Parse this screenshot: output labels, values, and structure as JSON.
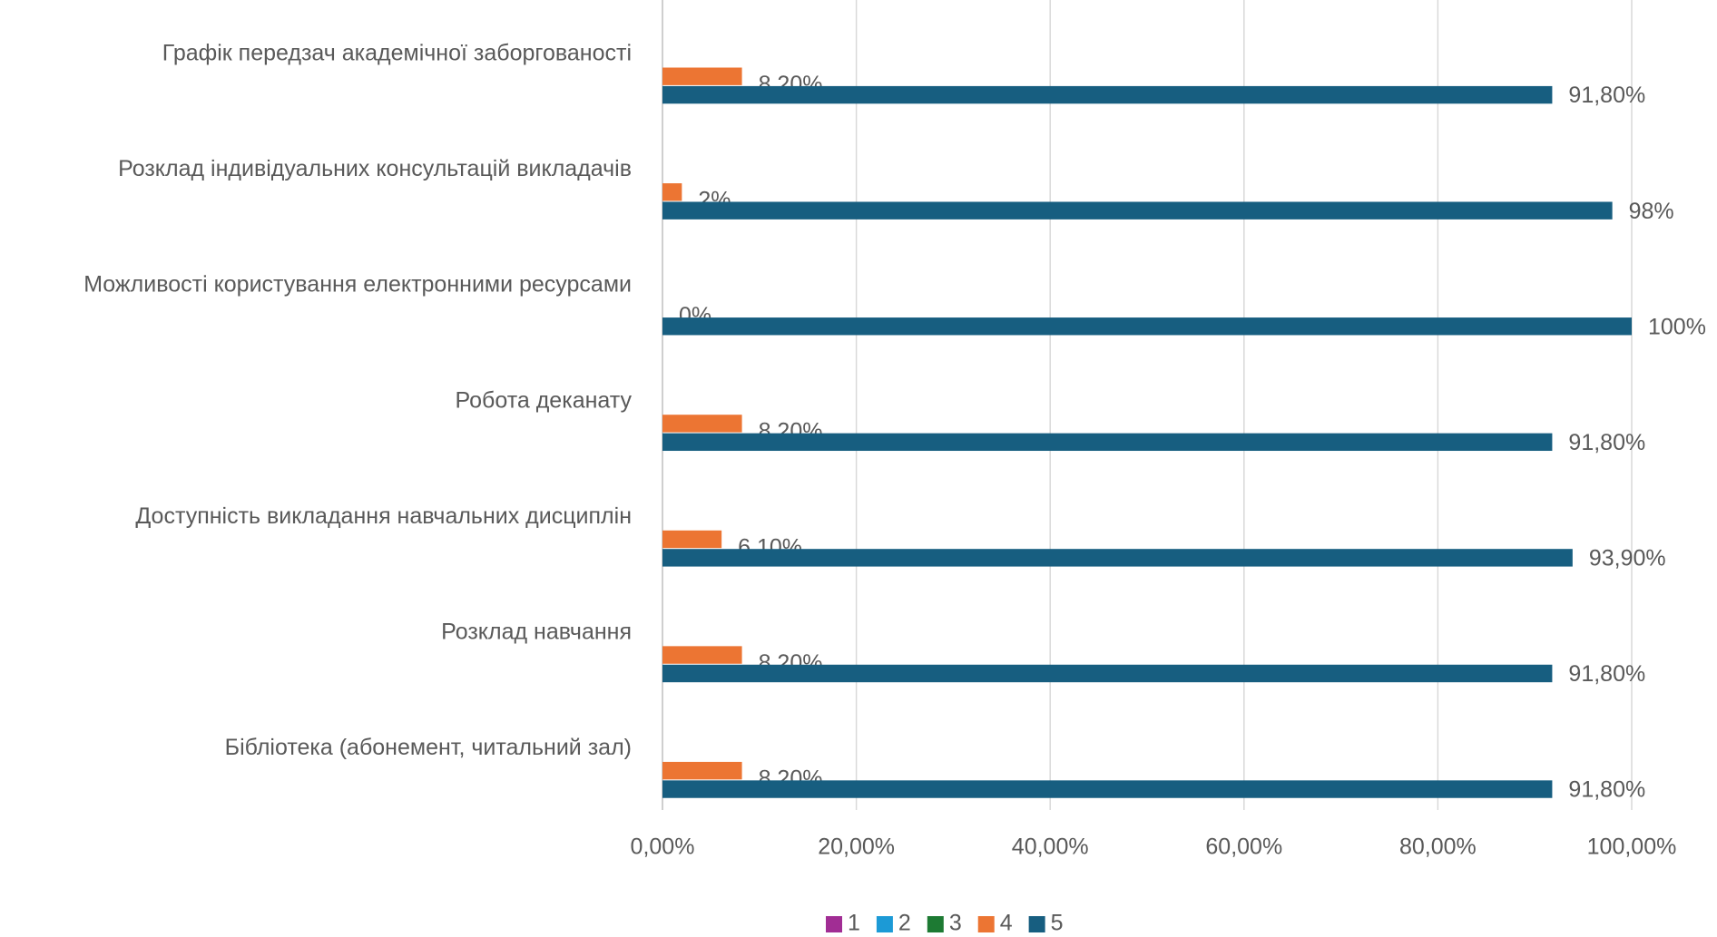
{
  "chart_data": {
    "type": "bar",
    "orientation": "horizontal",
    "categories": [
      "Графік передзач академічної заборгованості",
      "Розклад індивідуальних консультацій викладачів",
      "Можливості користування електронними ресурсами",
      "Робота деканату",
      "Доступність викладання навчальних дисциплін",
      "Розклад навчання",
      "Бібліотека (абонемент, читальний зал)"
    ],
    "series": [
      {
        "name": "1",
        "color": "#a12d94",
        "values": [
          0,
          0,
          0,
          0,
          0,
          0,
          0
        ]
      },
      {
        "name": "2",
        "color": "#1c9ad6",
        "values": [
          0,
          0,
          0,
          0,
          0,
          0,
          0
        ]
      },
      {
        "name": "3",
        "color": "#1d7a33",
        "values": [
          0,
          0,
          0,
          0,
          0,
          0,
          0
        ]
      },
      {
        "name": "4",
        "color": "#ec7533",
        "values": [
          8.2,
          2,
          0,
          8.2,
          6.1,
          8.2,
          8.2
        ],
        "value_labels": [
          "8,20%",
          "2%",
          "0%",
          "8,20%",
          "6,10%",
          "8,20%",
          "8,20%"
        ]
      },
      {
        "name": "5",
        "color": "#175e80",
        "values": [
          91.8,
          98,
          100,
          91.8,
          93.9,
          91.8,
          91.8
        ],
        "value_labels": [
          "91,80%",
          "98%",
          "100%",
          "91,80%",
          "93,90%",
          "91,80%",
          "91,80%"
        ]
      }
    ],
    "xlim": [
      0,
      100
    ],
    "xticks": [
      {
        "value": 0,
        "label": "0,00%"
      },
      {
        "value": 20,
        "label": "20,00%"
      },
      {
        "value": 40,
        "label": "40,00%"
      },
      {
        "value": 60,
        "label": "60,00%"
      },
      {
        "value": 80,
        "label": "80,00%"
      },
      {
        "value": 100,
        "label": "100,00%"
      }
    ],
    "grid": true,
    "legend": "bottom"
  }
}
